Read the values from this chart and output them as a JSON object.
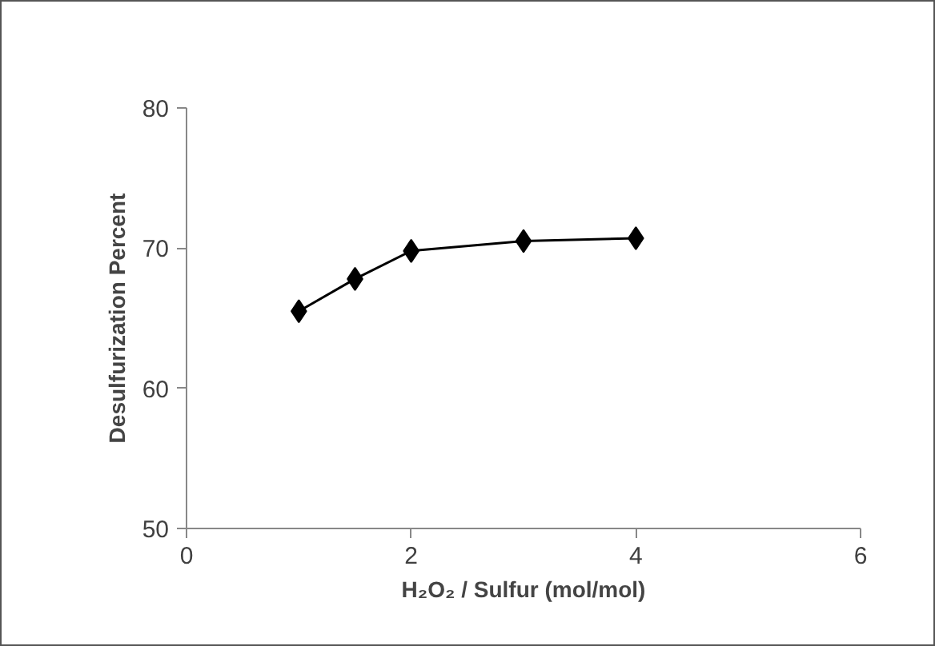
{
  "chart_data": {
    "type": "line",
    "xlabel": "H₂O₂ / Sulfur (mol/mol)",
    "ylabel": "Desulfurization Percent",
    "x": [
      1,
      1.5,
      2,
      3,
      4
    ],
    "series": [
      {
        "color": "#000000",
        "values": [
          65.5,
          67.8,
          69.8,
          70.5,
          70.7
        ]
      }
    ],
    "xlim": [
      0,
      6
    ],
    "xticks": [
      0,
      2,
      4,
      6
    ],
    "ylim": [
      50,
      80
    ],
    "yticks": [
      50,
      60,
      70,
      80
    ],
    "grid": false,
    "marker": "diamond",
    "line_style": "solid"
  }
}
